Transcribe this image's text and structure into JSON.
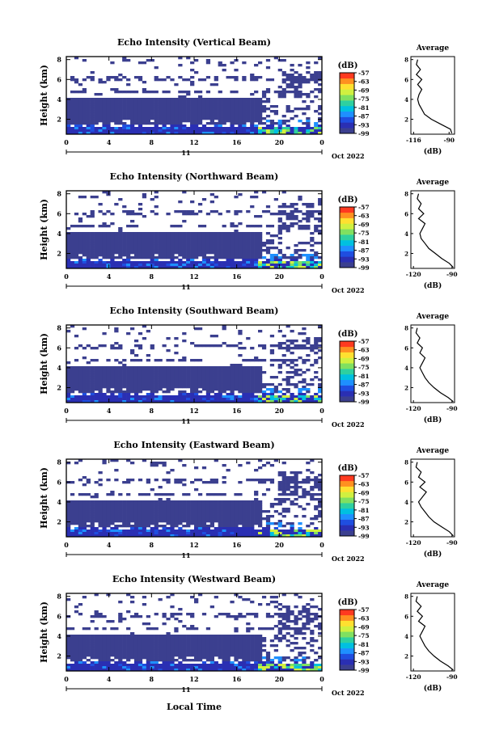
{
  "figure": {
    "x_axis_label": "Local Time",
    "date_label": "Oct 2022",
    "day_label": "11",
    "cb_unit": "(dB)",
    "avg_title": "Average",
    "avg_xlabel": "(dB)",
    "ylabel": "Height (km)"
  },
  "colors": {
    "colormap": [
      "#3b3f8f",
      "#2a2fb3",
      "#1f4ee0",
      "#1e90ff",
      "#00c0e0",
      "#2ed0a0",
      "#80e060",
      "#d0f040",
      "#ffe030",
      "#ff9020",
      "#ff3a20"
    ],
    "nodata": "#ffffff"
  },
  "chart_data": [
    {
      "type": "heatmap",
      "title": "Echo Intensity (Vertical Beam)",
      "beam": "vertical",
      "x_ticks": [
        "0",
        "4",
        "8",
        "12",
        "16",
        "20",
        "0"
      ],
      "x_range_hours": [
        0,
        24
      ],
      "y_ticks": [
        "2",
        "4",
        "6",
        "8"
      ],
      "y_range_km": [
        0.5,
        8.3
      ],
      "colorbar_ticks": [
        "-57",
        "-63",
        "-69",
        "-75",
        "-81",
        "-87",
        "-93",
        "-99"
      ],
      "colorbar_range_db": [
        -99,
        -57
      ],
      "average_profile": {
        "x_ticks": [
          "-116",
          "-90"
        ],
        "x_range_db": [
          -118,
          -86
        ],
        "height_km": [
          0.6,
          1.0,
          1.5,
          2.0,
          2.5,
          3.0,
          3.5,
          4.0,
          4.5,
          5.0,
          5.5,
          6.0,
          6.5,
          7.0,
          7.5,
          8.0
        ],
        "value_db": [
          -88,
          -89,
          -96,
          -103,
          -108,
          -110,
          -112,
          -113,
          -112,
          -110,
          -113,
          -110,
          -114,
          -111,
          -114,
          -113
        ]
      }
    },
    {
      "type": "heatmap",
      "title": "Echo Intensity (Northward Beam)",
      "beam": "northward",
      "x_ticks": [
        "0",
        "4",
        "8",
        "12",
        "16",
        "20",
        "0"
      ],
      "x_range_hours": [
        0,
        24
      ],
      "y_ticks": [
        "2",
        "4",
        "6",
        "8"
      ],
      "y_range_km": [
        0.5,
        8.3
      ],
      "colorbar_ticks": [
        "-57",
        "-63",
        "-69",
        "-75",
        "-81",
        "-87",
        "-93",
        "-99"
      ],
      "colorbar_range_db": [
        -99,
        -57
      ],
      "average_profile": {
        "x_ticks": [
          "-120",
          "-90"
        ],
        "x_range_db": [
          -122,
          -88
        ],
        "height_km": [
          0.6,
          1.0,
          1.5,
          2.0,
          2.5,
          3.0,
          3.5,
          4.0,
          4.5,
          5.0,
          5.5,
          6.0,
          6.5,
          7.0,
          7.5,
          8.0
        ],
        "value_db": [
          -89,
          -92,
          -98,
          -103,
          -108,
          -111,
          -114,
          -115,
          -113,
          -111,
          -116,
          -112,
          -116,
          -114,
          -117,
          -116
        ]
      }
    },
    {
      "type": "heatmap",
      "title": "Echo Intensity (Southward Beam)",
      "beam": "southward",
      "x_ticks": [
        "0",
        "4",
        "8",
        "12",
        "16",
        "20",
        "0"
      ],
      "x_range_hours": [
        0,
        24
      ],
      "y_ticks": [
        "2",
        "4",
        "6",
        "8"
      ],
      "y_range_km": [
        0.5,
        8.3
      ],
      "colorbar_ticks": [
        "-57",
        "-63",
        "-69",
        "-75",
        "-81",
        "-87",
        "-93",
        "-99"
      ],
      "colorbar_range_db": [
        -99,
        -57
      ],
      "average_profile": {
        "x_ticks": [
          "-120",
          "-90"
        ],
        "x_range_db": [
          -122,
          -88
        ],
        "height_km": [
          0.6,
          1.0,
          1.5,
          2.0,
          2.5,
          3.0,
          3.5,
          4.0,
          4.5,
          5.0,
          5.5,
          6.0,
          6.5,
          7.0,
          7.5,
          8.0
        ],
        "value_db": [
          -89,
          -93,
          -99,
          -104,
          -108,
          -111,
          -113,
          -115,
          -113,
          -111,
          -115,
          -113,
          -117,
          -115,
          -118,
          -117
        ]
      }
    },
    {
      "type": "heatmap",
      "title": "Echo Intensity (Eastward Beam)",
      "beam": "eastward",
      "x_ticks": [
        "0",
        "4",
        "8",
        "12",
        "16",
        "20",
        "0"
      ],
      "x_range_hours": [
        0,
        24
      ],
      "y_ticks": [
        "2",
        "4",
        "6",
        "8"
      ],
      "y_range_km": [
        0.5,
        8.3
      ],
      "colorbar_ticks": [
        "-57",
        "-63",
        "-69",
        "-75",
        "-81",
        "-87",
        "-93",
        "-99"
      ],
      "colorbar_range_db": [
        -99,
        -57
      ],
      "average_profile": {
        "x_ticks": [
          "-120",
          "-90"
        ],
        "x_range_db": [
          -122,
          -88
        ],
        "height_km": [
          0.6,
          1.0,
          1.5,
          2.0,
          2.5,
          3.0,
          3.5,
          4.0,
          4.5,
          5.0,
          5.5,
          6.0,
          6.5,
          7.0,
          7.5,
          8.0
        ],
        "value_db": [
          -89,
          -92,
          -98,
          -104,
          -108,
          -111,
          -114,
          -116,
          -113,
          -110,
          -115,
          -111,
          -116,
          -114,
          -118,
          -117
        ]
      }
    },
    {
      "type": "heatmap",
      "title": "Echo Intensity (Westward Beam)",
      "beam": "westward",
      "x_ticks": [
        "0",
        "4",
        "8",
        "12",
        "16",
        "20",
        "0"
      ],
      "x_range_hours": [
        0,
        24
      ],
      "y_ticks": [
        "2",
        "4",
        "6",
        "8"
      ],
      "y_range_km": [
        0.5,
        8.3
      ],
      "colorbar_ticks": [
        "-57",
        "-63",
        "-69",
        "-75",
        "-81",
        "-87",
        "-93",
        "-99"
      ],
      "colorbar_range_db": [
        -99,
        -57
      ],
      "average_profile": {
        "x_ticks": [
          "-120",
          "-90"
        ],
        "x_range_db": [
          -122,
          -88
        ],
        "height_km": [
          0.6,
          1.0,
          1.5,
          2.0,
          2.5,
          3.0,
          3.5,
          4.0,
          4.5,
          5.0,
          5.5,
          6.0,
          6.5,
          7.0,
          7.5,
          8.0
        ],
        "value_db": [
          -89,
          -93,
          -99,
          -104,
          -108,
          -111,
          -113,
          -115,
          -113,
          -111,
          -116,
          -113,
          -117,
          -114,
          -118,
          -117
        ]
      }
    }
  ]
}
